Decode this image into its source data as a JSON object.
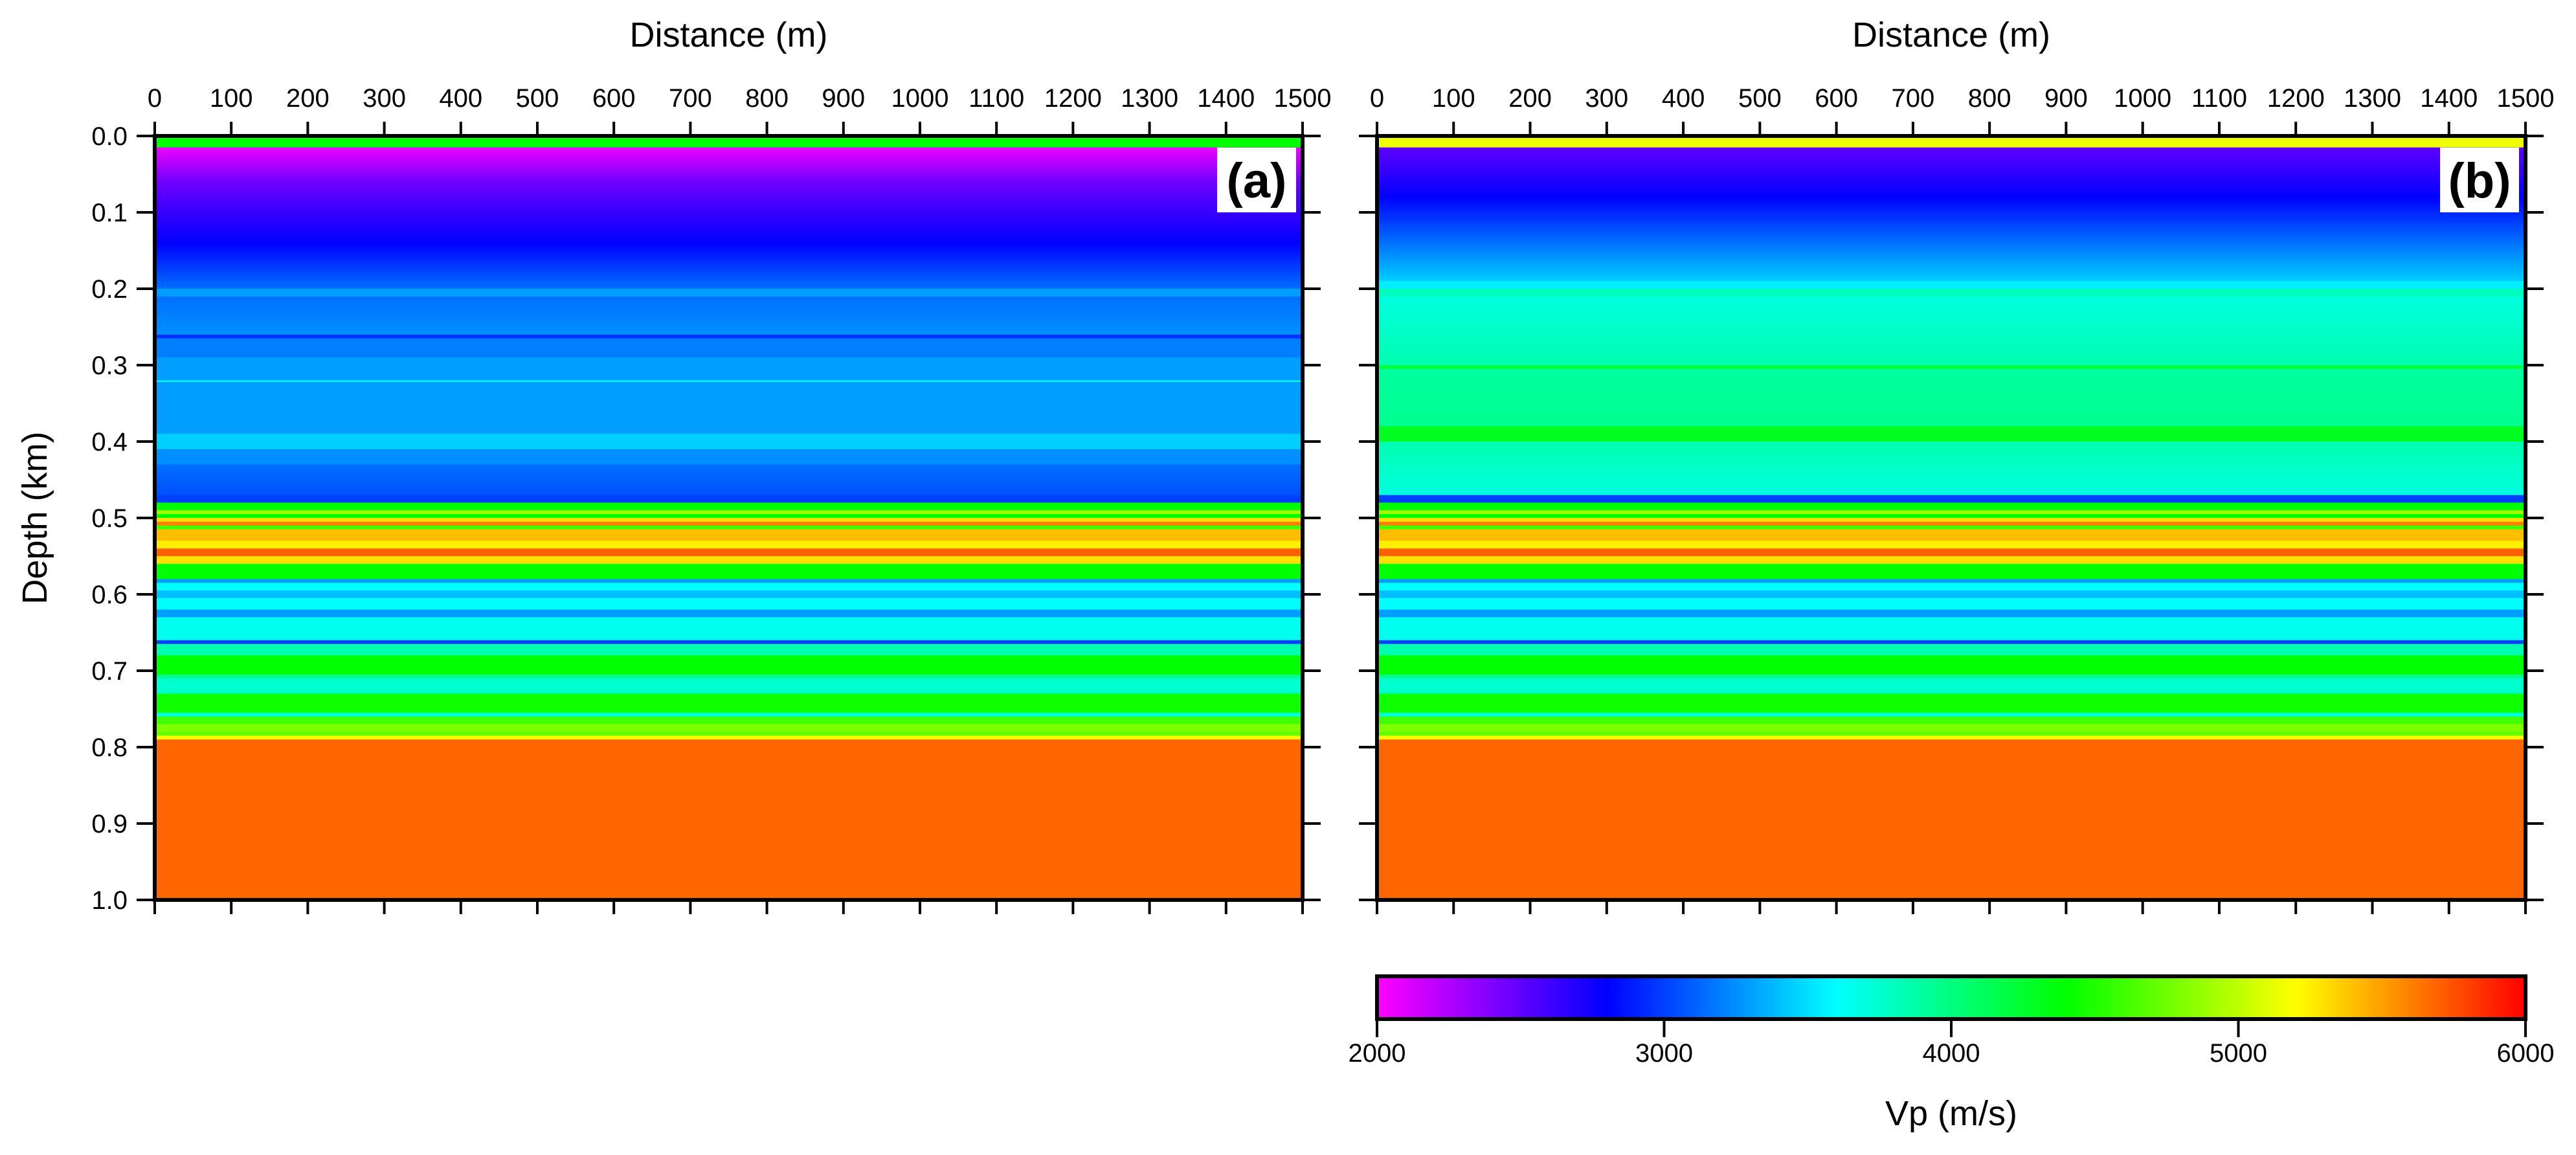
{
  "chart_data": {
    "type": "heatmap",
    "colorscale": {
      "label": "Vp (m/s)",
      "range": [
        2000,
        6000
      ],
      "ticks": [
        "2000",
        "3000",
        "4000",
        "5000",
        "6000"
      ],
      "stops": [
        "#ff00ff",
        "#0000ff",
        "#00ffff",
        "#00ff00",
        "#ffff00",
        "#ff0000"
      ]
    },
    "panels": [
      {
        "label": "(a)",
        "xlabel": "Distance (m)",
        "ylabel": "Depth (km)",
        "xlim": [
          0,
          1500
        ],
        "ylim": [
          0,
          1.0
        ],
        "xticks": [
          "0",
          "100",
          "200",
          "300",
          "400",
          "500",
          "600",
          "700",
          "800",
          "900",
          "1000",
          "1100",
          "1200",
          "1300",
          "1400",
          "1500"
        ],
        "yticks": [
          "0.0",
          "0.1",
          "0.2",
          "0.3",
          "0.4",
          "0.5",
          "0.6",
          "0.7",
          "0.8",
          "0.9",
          "1.0"
        ],
        "layers_depth_km_vp": [
          [
            0,
            0.015,
            4400,
            4400
          ],
          [
            0.015,
            0.06,
            2050,
            2450
          ],
          [
            0.06,
            0.14,
            2450,
            2800
          ],
          [
            0.14,
            0.2,
            2800,
            3150
          ],
          [
            0.2,
            0.21,
            3300,
            3300
          ],
          [
            0.21,
            0.26,
            3150,
            3250
          ],
          [
            0.26,
            0.265,
            2950,
            2950
          ],
          [
            0.265,
            0.29,
            3200,
            3200
          ],
          [
            0.29,
            0.32,
            3300,
            3300
          ],
          [
            0.32,
            0.322,
            3700,
            3700
          ],
          [
            0.322,
            0.39,
            3300,
            3300
          ],
          [
            0.39,
            0.41,
            3450,
            3450
          ],
          [
            0.41,
            0.43,
            3250,
            3250
          ],
          [
            0.43,
            0.47,
            3150,
            3050
          ]
        ]
      },
      {
        "label": "(b)",
        "xlabel": "Distance (m)",
        "ylabel": "",
        "xlim": [
          0,
          1500
        ],
        "ylim": [
          0,
          1.0
        ],
        "xticks": [
          "0",
          "100",
          "200",
          "300",
          "400",
          "500",
          "600",
          "700",
          "800",
          "900",
          "1000",
          "1100",
          "1200",
          "1300",
          "1400",
          "1500"
        ],
        "yticks": [],
        "layers_depth_km_vp": [
          [
            0,
            0.015,
            5150,
            5150
          ],
          [
            0.015,
            0.08,
            2500,
            2800
          ],
          [
            0.08,
            0.19,
            2800,
            3450
          ],
          [
            0.19,
            0.2,
            3550,
            3550
          ],
          [
            0.2,
            0.21,
            3800,
            3800
          ],
          [
            0.21,
            0.3,
            3700,
            3850
          ],
          [
            0.3,
            0.305,
            4200,
            4200
          ],
          [
            0.305,
            0.38,
            3900,
            3950
          ],
          [
            0.38,
            0.4,
            4300,
            4300
          ],
          [
            0.4,
            0.47,
            3850,
            3700
          ]
        ]
      }
    ],
    "shared_deep_layers_depth_km_vp": [
      [
        0.47,
        0.48,
        3000,
        3000
      ],
      [
        0.48,
        0.49,
        4400,
        4400
      ],
      [
        0.49,
        0.495,
        4900,
        4900
      ],
      [
        0.495,
        0.5,
        4400,
        4400
      ],
      [
        0.5,
        0.505,
        5300,
        5300
      ],
      [
        0.505,
        0.51,
        5600,
        5600
      ],
      [
        0.51,
        0.515,
        4600,
        4600
      ],
      [
        0.515,
        0.53,
        5400,
        5400
      ],
      [
        0.53,
        0.54,
        5250,
        5250
      ],
      [
        0.54,
        0.55,
        5700,
        5700
      ],
      [
        0.55,
        0.56,
        5300,
        5300
      ],
      [
        0.56,
        0.58,
        4400,
        4400
      ],
      [
        0.58,
        0.585,
        3300,
        3300
      ],
      [
        0.585,
        0.595,
        3600,
        3600
      ],
      [
        0.595,
        0.605,
        3400,
        3400
      ],
      [
        0.605,
        0.62,
        3600,
        3600
      ],
      [
        0.62,
        0.63,
        3300,
        3300
      ],
      [
        0.63,
        0.66,
        3650,
        3650
      ],
      [
        0.66,
        0.665,
        3000,
        3000
      ],
      [
        0.665,
        0.68,
        3850,
        3850
      ],
      [
        0.68,
        0.705,
        4400,
        4400
      ],
      [
        0.705,
        0.71,
        3950,
        3950
      ],
      [
        0.71,
        0.73,
        3750,
        3750
      ],
      [
        0.73,
        0.755,
        4450,
        4450
      ],
      [
        0.755,
        0.76,
        3700,
        3700
      ],
      [
        0.76,
        0.77,
        4600,
        4600
      ],
      [
        0.77,
        0.78,
        4800,
        4800
      ],
      [
        0.78,
        0.785,
        4700,
        4700
      ],
      [
        0.785,
        0.79,
        5200,
        5200
      ],
      [
        0.79,
        1.0,
        5680,
        5680
      ]
    ]
  }
}
